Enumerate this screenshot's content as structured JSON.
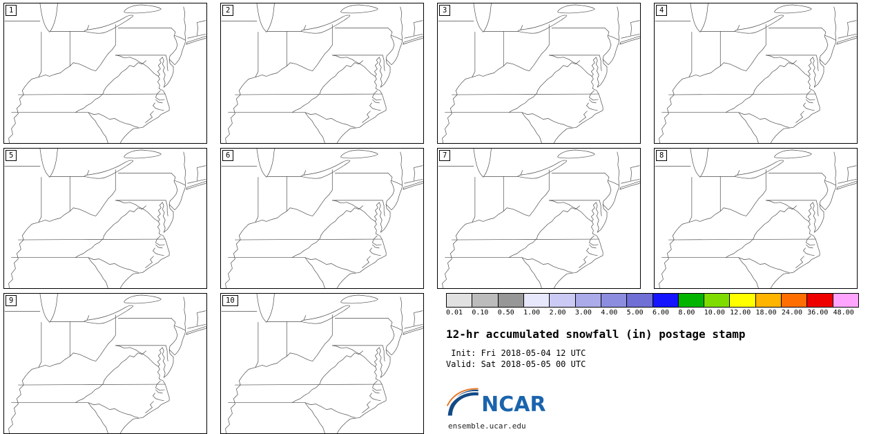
{
  "panels": [
    {
      "label": "1"
    },
    {
      "label": "2"
    },
    {
      "label": "3"
    },
    {
      "label": "4"
    },
    {
      "label": "5"
    },
    {
      "label": "6"
    },
    {
      "label": "7"
    },
    {
      "label": "8"
    },
    {
      "label": "9"
    },
    {
      "label": "10"
    }
  ],
  "colorbar": {
    "tick_labels": [
      "0.01",
      "0.10",
      "0.50",
      "1.00",
      "2.00",
      "3.00",
      "4.00",
      "5.00",
      "6.00",
      "8.00",
      "10.00",
      "12.00",
      "18.00",
      "24.00",
      "36.00",
      "48.00"
    ],
    "colors": [
      "#e1e1e1",
      "#bcbcbc",
      "#979797",
      "#e8e8fd",
      "#cacaf4",
      "#ababe9",
      "#8d8ddf",
      "#6f6fd5",
      "#1414ff",
      "#00b400",
      "#7fdc00",
      "#ffff00",
      "#ffb400",
      "#ff6e00",
      "#ee0000",
      "#ffa5ff"
    ],
    "outline_color": "#000000"
  },
  "legend": {
    "title": "12-hr accumulated snowfall (in) postage stamp",
    "init_line": " Init: Fri 2018-05-04 12 UTC",
    "valid_line": "Valid: Sat 2018-05-05 00 UTC"
  },
  "logo": {
    "text": "NCAR",
    "url": "ensemble.ucar.edu",
    "text_color": "#1b64ad",
    "swoosh_color": "#134a86",
    "arc_color": "#e87722"
  },
  "map": {
    "line_color": "#4a4a4a",
    "background": "#ffffff"
  }
}
